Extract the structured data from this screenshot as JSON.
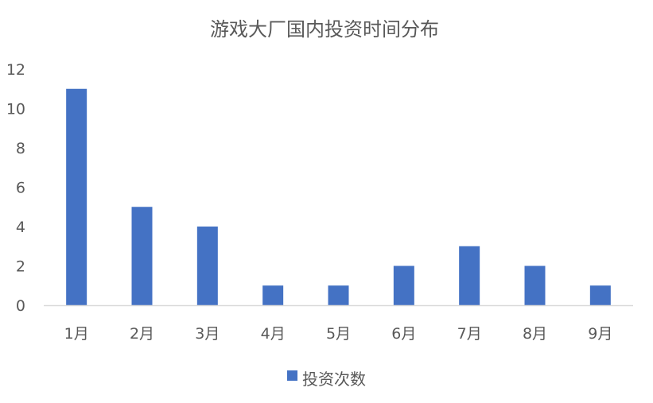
{
  "chart_data": {
    "type": "bar",
    "title": "游戏大厂国内投资时间分布",
    "categories": [
      "1月",
      "2月",
      "3月",
      "4月",
      "5月",
      "6月",
      "7月",
      "8月",
      "9月"
    ],
    "series": [
      {
        "name": "投资次数",
        "values": [
          11,
          5,
          4,
          1,
          1,
          2,
          3,
          2,
          1
        ],
        "color": "#4472C4"
      }
    ],
    "xlabel": "",
    "ylabel": "",
    "ylim": [
      0,
      12
    ],
    "yticks": [
      0,
      2,
      4,
      6,
      8,
      10,
      12
    ],
    "grid": false,
    "legend": "bottom"
  }
}
